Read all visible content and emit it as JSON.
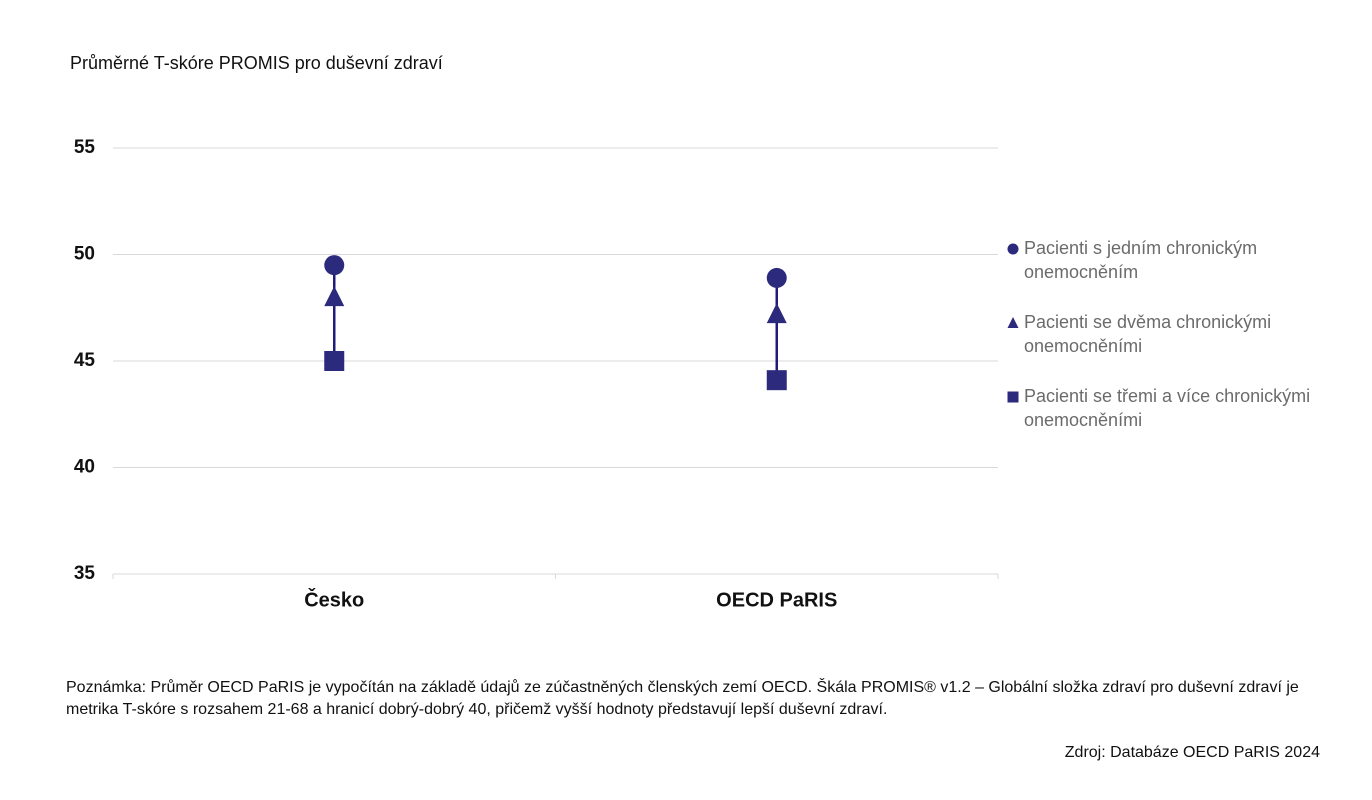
{
  "chart_data": {
    "type": "dot-range",
    "title": "Průměrné T-skóre PROMIS pro duševní zdraví",
    "categories": [
      "Česko",
      "OECD PaRIS"
    ],
    "series": [
      {
        "name": "Pacienti s jedním chronickým onemocněním",
        "color": "#2b2a7c",
        "marker": "circle",
        "values": [
          49.5,
          48.9
        ]
      },
      {
        "name": "Pacienti se dvěma chronickými onemocněními",
        "color": "#2b2a7c",
        "marker": "triangle",
        "values": [
          48.0,
          47.2
        ]
      },
      {
        "name": "Pacienti se třemi a více chronickými onemocněními",
        "color": "#2b2a7c",
        "marker": "square",
        "values": [
          45.0,
          44.1
        ]
      }
    ],
    "ylim": [
      35,
      55
    ],
    "yticks": [
      35,
      40,
      45,
      50,
      55
    ],
    "grid": true,
    "legend": "right",
    "note": "Poznámka: Průměr OECD PaRIS je vypočítán na základě údajů ze zúčastněných členských zemí OECD. Škála PROMIS® v1.2 – Globální složka zdraví pro duševní zdraví je metrika T-skóre s rozsahem 21-68 a hranicí dobrý-dobrý 40, přičemž vyšší hodnoty představují lepší duševní zdraví.",
    "source": "Zdroj: Databáze OECD PaRIS 2024"
  }
}
